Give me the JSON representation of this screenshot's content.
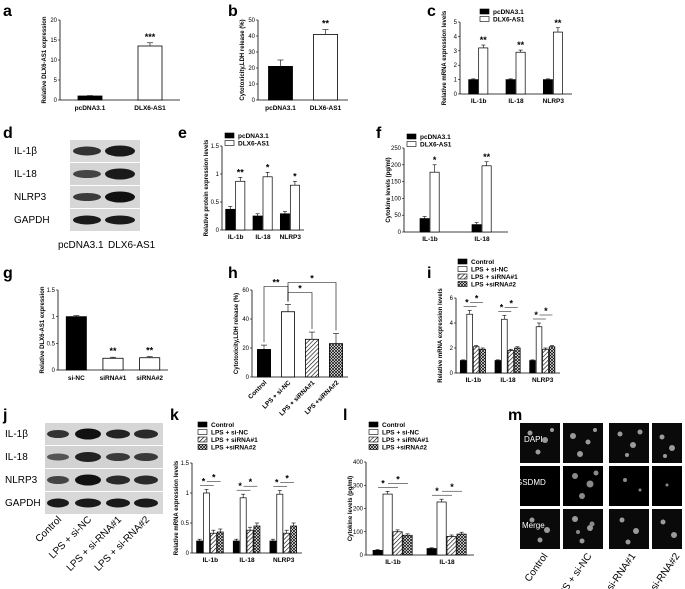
{
  "panels": {
    "a": "a",
    "b": "b",
    "c": "c",
    "d": "d",
    "e": "e",
    "f": "f",
    "g": "g",
    "h": "h",
    "i": "i",
    "j": "j",
    "k": "k",
    "l": "l",
    "m": "m"
  },
  "blot_d": {
    "rows": [
      "IL-1β",
      "IL-18",
      "NLRP3",
      "GAPDH"
    ],
    "lanes": [
      "pcDNA3.1",
      "DLX6-AS1"
    ]
  },
  "blot_j": {
    "rows": [
      "IL-1β",
      "IL-18",
      "NLRP3",
      "GAPDH"
    ],
    "lanes": [
      "Control",
      "LPS + si-NC",
      "LPS + si-RNA#1",
      "LPS + si-RNA#2"
    ]
  },
  "panel_m": {
    "rows": [
      "DAPI",
      "GSDMD",
      "Merge"
    ],
    "cols": [
      "Control",
      "LPS + si-NC",
      "LPS + si-RNA#1",
      "LPS + si-RNA#2"
    ],
    "gsdmd_color": "#bdbdbd"
  },
  "chart_data": [
    {
      "panel": "a",
      "type": "bar",
      "ylabel": "Relative DLX6-AS1 expression",
      "ylim": [
        0,
        20
      ],
      "yticks": [
        0,
        5,
        10,
        15,
        20
      ],
      "categories": [
        "pcDNA3.1",
        "DLX6-AS1"
      ],
      "values": [
        1,
        13.5
      ],
      "errors": [
        0.1,
        0.8
      ],
      "fills": [
        "black",
        "white"
      ],
      "annotations": [
        "",
        "***"
      ]
    },
    {
      "panel": "b",
      "type": "bar",
      "ylabel": "Cytotoxicity,LDH release (%)",
      "ylim": [
        0,
        50
      ],
      "yticks": [
        0,
        10,
        20,
        30,
        40,
        50
      ],
      "categories": [
        "pcDNA3.1",
        "DLX6-AS1"
      ],
      "values": [
        21,
        41
      ],
      "errors": [
        4,
        3
      ],
      "fills": [
        "black",
        "white"
      ],
      "annotations": [
        "",
        "**"
      ]
    },
    {
      "panel": "c",
      "type": "bar",
      "ylabel": "Relative mRNA expression levels",
      "ylim": [
        0,
        5
      ],
      "yticks": [
        0,
        1,
        2,
        3,
        4,
        5
      ],
      "categories": [
        "IL-1b",
        "IL-18",
        "NLRP3"
      ],
      "series": [
        {
          "name": "pcDNA3.1",
          "values": [
            1,
            1,
            1
          ],
          "errors": [
            0.05,
            0.05,
            0.05
          ],
          "fill": "black"
        },
        {
          "name": "DLX6-AS1",
          "values": [
            3.2,
            2.9,
            4.3
          ],
          "errors": [
            0.2,
            0.15,
            0.3
          ],
          "fill": "white"
        }
      ],
      "annotations": [
        [
          "",
          "**"
        ],
        [
          "",
          "**"
        ],
        [
          "",
          "**"
        ]
      ]
    },
    {
      "panel": "e",
      "type": "bar",
      "ylabel": "Relative protein expression levels",
      "ylim": [
        0,
        1.5
      ],
      "yticks": [
        0.0,
        0.5,
        1.0,
        1.5
      ],
      "categories": [
        "IL-1b",
        "IL-18",
        "NLRP3"
      ],
      "series": [
        {
          "name": "pcDNA3.1",
          "values": [
            0.37,
            0.25,
            0.29
          ],
          "errors": [
            0.05,
            0.04,
            0.04
          ],
          "fill": "black"
        },
        {
          "name": "DLX6-AS1",
          "values": [
            0.87,
            0.95,
            0.8
          ],
          "errors": [
            0.07,
            0.08,
            0.07
          ],
          "fill": "white"
        }
      ],
      "annotations": [
        [
          "",
          "**"
        ],
        [
          "",
          "*"
        ],
        [
          "",
          "*"
        ]
      ]
    },
    {
      "panel": "f",
      "type": "bar",
      "ylabel": "Cytokine levels (pg/ml)",
      "ylim": [
        0,
        250
      ],
      "yticks": [
        0,
        50,
        100,
        150,
        200,
        250
      ],
      "categories": [
        "IL-1b",
        "IL-18"
      ],
      "series": [
        {
          "name": "pcDNA3.1",
          "values": [
            40,
            22
          ],
          "errors": [
            6,
            6
          ],
          "fill": "black"
        },
        {
          "name": "DLX6-AS1",
          "values": [
            178,
            197
          ],
          "errors": [
            22,
            12
          ],
          "fill": "white"
        }
      ],
      "annotations": [
        [
          "",
          "*"
        ],
        [
          "",
          "**"
        ]
      ]
    },
    {
      "panel": "g",
      "type": "bar",
      "ylabel": "Relative DLX6-AS1 expression",
      "ylim": [
        0,
        1.5
      ],
      "yticks": [
        0.0,
        0.5,
        1.0,
        1.5
      ],
      "categories": [
        "si-NC",
        "siRNA#1",
        "siRNA#2"
      ],
      "values": [
        1,
        0.22,
        0.23
      ],
      "errors": [
        0.02,
        0.02,
        0.02
      ],
      "fills": [
        "black",
        "white",
        "white"
      ],
      "annotations": [
        "",
        "**",
        "**"
      ]
    },
    {
      "panel": "h",
      "type": "bar",
      "ylabel": "Cytotoxicity,LDH release (%)",
      "ylim": [
        0,
        60
      ],
      "yticks": [
        0,
        20,
        40,
        60
      ],
      "categories": [
        "Control",
        "LPS + si-NC",
        "LPS + siRNA#1",
        "LPS +siRNA#2"
      ],
      "values": [
        19,
        45,
        26,
        23
      ],
      "errors": [
        3,
        5,
        5,
        7
      ],
      "fills": [
        "black",
        "white",
        "hatch",
        "cross"
      ],
      "brackets": [
        "**",
        "*",
        "*"
      ]
    },
    {
      "panel": "i",
      "type": "bar",
      "ylabel": "Relative mRNA expression levels",
      "ylim": [
        0,
        6
      ],
      "yticks": [
        0,
        2,
        4,
        6
      ],
      "categories": [
        "IL-1b",
        "IL-18",
        "NLRP3"
      ],
      "series": [
        {
          "name": "Control",
          "values": [
            1,
            1,
            1
          ],
          "errors": [
            0.05,
            0.05,
            0.05
          ],
          "fill": "black"
        },
        {
          "name": "LPS + si-NC",
          "values": [
            4.7,
            4.3,
            3.7
          ],
          "errors": [
            0.3,
            0.3,
            0.3
          ],
          "fill": "white"
        },
        {
          "name": "LPS + siRNA#1",
          "values": [
            2.1,
            1.8,
            1.9
          ],
          "errors": [
            0.1,
            0.1,
            0.1
          ],
          "fill": "hatch"
        },
        {
          "name": "LPS +siRNA#2",
          "values": [
            1.9,
            2.0,
            2.1
          ],
          "errors": [
            0.1,
            0.1,
            0.1
          ],
          "fill": "cross"
        }
      ]
    },
    {
      "panel": "k",
      "type": "bar",
      "ylabel": "Relative mRNA expression levels",
      "ylim": [
        0,
        1.5
      ],
      "yticks": [
        0.0,
        0.5,
        1.0,
        1.5
      ],
      "categories": [
        "IL-1b",
        "IL-18",
        "NLRP3"
      ],
      "series": [
        {
          "name": "Control",
          "values": [
            0.2,
            0.2,
            0.2
          ],
          "errors": [
            0.03,
            0.03,
            0.03
          ],
          "fill": "black"
        },
        {
          "name": "LPS + si-NC",
          "values": [
            1.0,
            0.92,
            0.98
          ],
          "errors": [
            0.06,
            0.06,
            0.06
          ],
          "fill": "white"
        },
        {
          "name": "LPS + siRNA#1",
          "values": [
            0.33,
            0.38,
            0.33
          ],
          "errors": [
            0.05,
            0.05,
            0.05
          ],
          "fill": "hatch"
        },
        {
          "name": "LPS +siRNA#2",
          "values": [
            0.35,
            0.45,
            0.45
          ],
          "errors": [
            0.05,
            0.05,
            0.05
          ],
          "fill": "cross"
        }
      ]
    },
    {
      "panel": "l",
      "type": "bar",
      "ylabel": "Cytokine levels (pg/ml)",
      "ylim": [
        0,
        400
      ],
      "yticks": [
        0,
        100,
        200,
        300,
        400
      ],
      "categories": [
        "IL-1b",
        "IL-18"
      ],
      "series": [
        {
          "name": "Control",
          "values": [
            20,
            28
          ],
          "errors": [
            3,
            3
          ],
          "fill": "black"
        },
        {
          "name": "LPS + si-NC",
          "values": [
            262,
            228
          ],
          "errors": [
            12,
            12
          ],
          "fill": "white"
        },
        {
          "name": "LPS + siRNA#1",
          "values": [
            100,
            80
          ],
          "errors": [
            8,
            6
          ],
          "fill": "hatch"
        },
        {
          "name": "LPS +siRNA#2",
          "values": [
            85,
            90
          ],
          "errors": [
            6,
            8
          ],
          "fill": "cross"
        }
      ]
    }
  ]
}
